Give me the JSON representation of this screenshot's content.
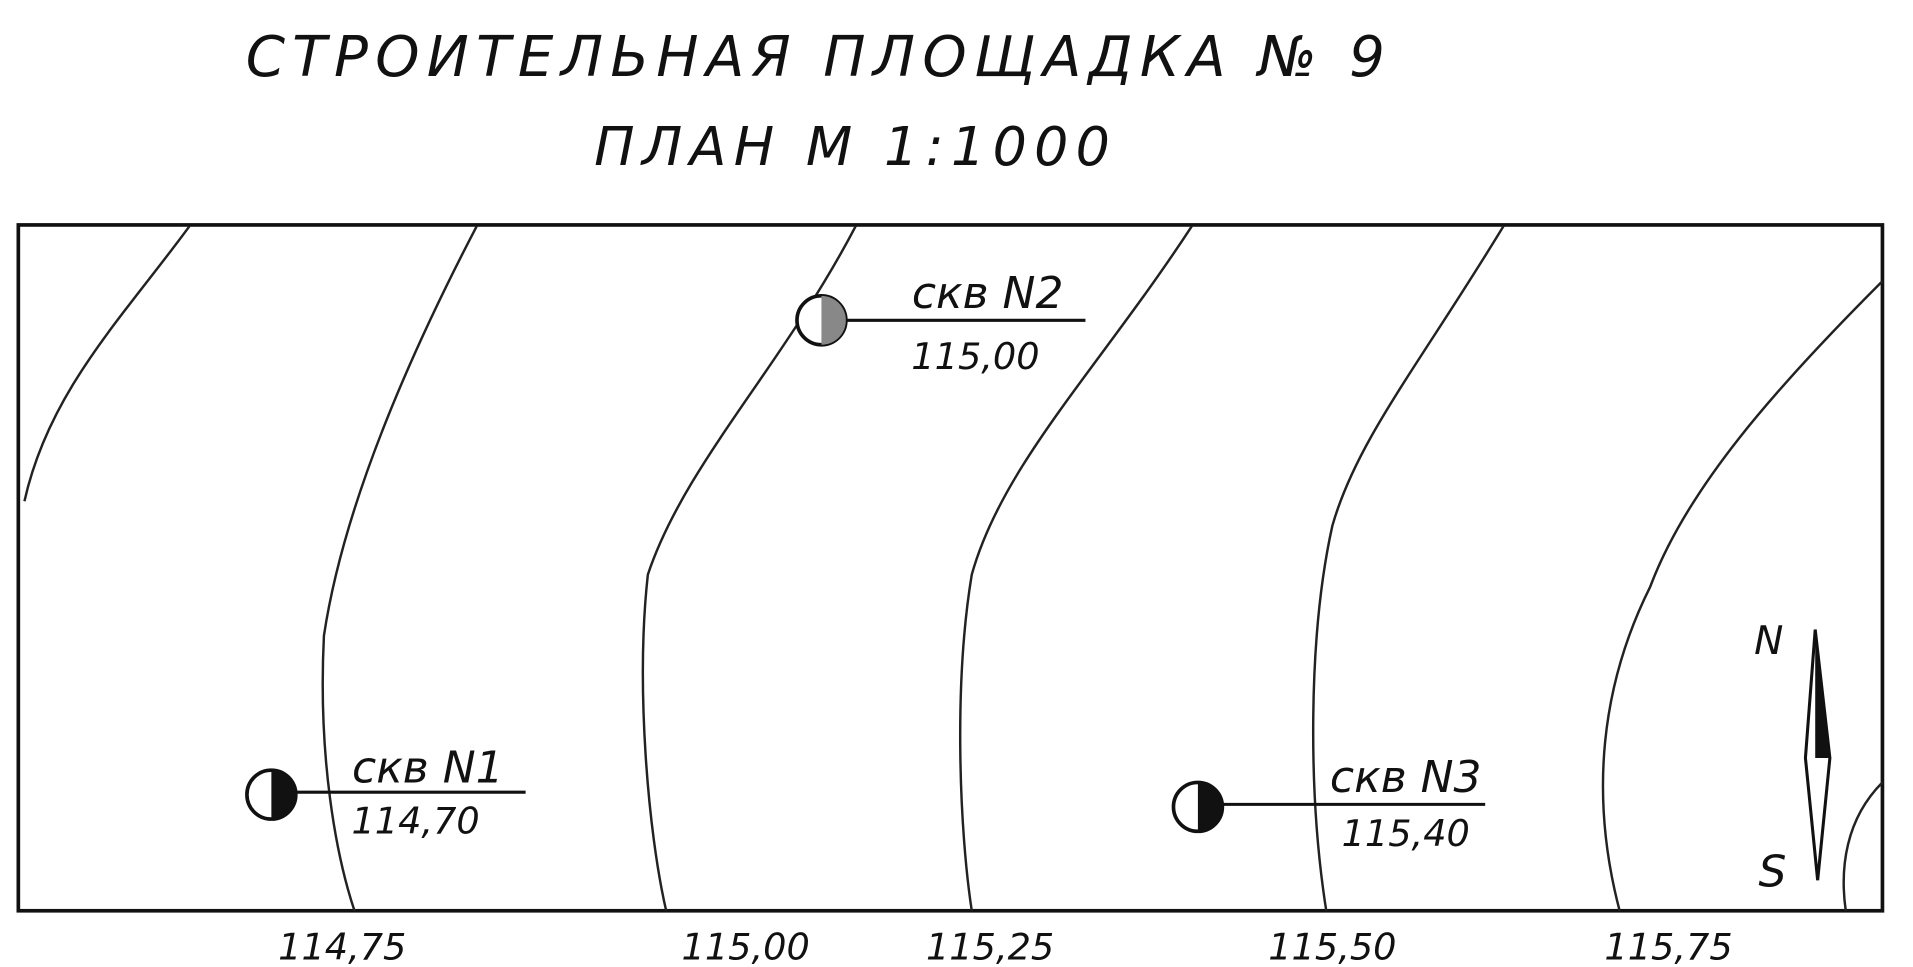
{
  "header": {
    "title": "СТРОИТЕЛЬНАЯ ПЛОЩАДКА № 9",
    "subtitle": "ПЛАН М 1:1000"
  },
  "boreholes": [
    {
      "label": "скв N1",
      "elevation": "114,70"
    },
    {
      "label": "скв N2",
      "elevation": "115,00"
    },
    {
      "label": "скв N3",
      "elevation": "115,40"
    }
  ],
  "contour_labels": [
    "114,75",
    "115,00",
    "115,25",
    "115,50",
    "115,75"
  ],
  "compass": {
    "north": "N",
    "south": "S"
  }
}
